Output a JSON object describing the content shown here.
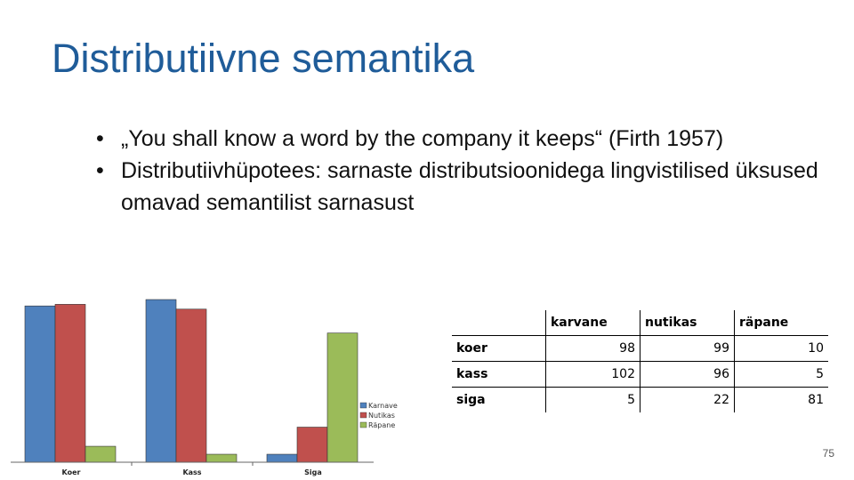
{
  "slide": {
    "title": "Distributiivne semantika",
    "bullets": [
      "„You shall know a word by the company it keeps“ (Firth 1957)",
      "Distributiivhüpotees: sarnaste distributsioonidega lingvistilised üksused omavad semantilist sarnasust"
    ],
    "bullet_glyph": "•",
    "page_number": "75"
  },
  "table": {
    "headers": [
      "",
      "karvane",
      "nutikas",
      "räpane"
    ],
    "rows": [
      {
        "label": "koer",
        "values": [
          "98",
          "99",
          "10"
        ]
      },
      {
        "label": "kass",
        "values": [
          "102",
          "96",
          "5"
        ]
      },
      {
        "label": "siga",
        "values": [
          "5",
          "22",
          "81"
        ]
      }
    ]
  },
  "chart_data": {
    "type": "bar",
    "categories": [
      "Koer",
      "Kass",
      "Siga"
    ],
    "series": [
      {
        "name": "Karnave",
        "color": "#4f81bd",
        "values": [
          98,
          102,
          5
        ]
      },
      {
        "name": "Nutikas",
        "color": "#c0504d",
        "values": [
          99,
          96,
          22
        ]
      },
      {
        "name": "Räpane",
        "color": "#9bbb59",
        "values": [
          10,
          5,
          81
        ]
      }
    ],
    "ylim": [
      0,
      102
    ],
    "legend": "right",
    "grid": false,
    "title": "",
    "xlabel": "",
    "ylabel": ""
  }
}
